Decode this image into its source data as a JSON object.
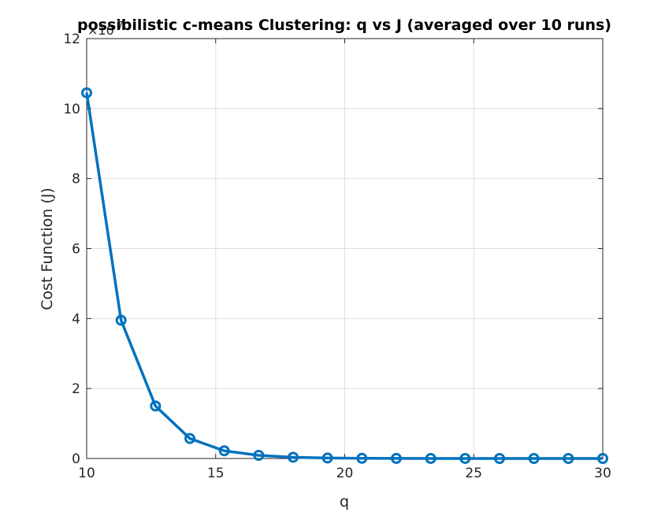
{
  "chart_data": {
    "type": "line",
    "title": "possibilistic c-means Clustering: q vs J (averaged over 10 runs)",
    "xlabel": "q",
    "ylabel": "Cost Function (J)",
    "y_exponent_label": "×10",
    "y_exponent_power": "7",
    "xlim": [
      10,
      30
    ],
    "ylim": [
      0,
      12
    ],
    "y_scale_factor": 10000000,
    "xticks": [
      10,
      15,
      20,
      25,
      30
    ],
    "yticks": [
      0,
      2,
      4,
      6,
      8,
      10,
      12
    ],
    "grid": true,
    "color": "#0072BD",
    "series": [
      {
        "x": [
          10,
          11.333,
          12.667,
          14,
          15.333,
          16.667,
          18,
          19.333,
          20.667,
          22,
          23.333,
          24.667,
          26,
          27.333,
          28.667,
          30
        ],
        "y": [
          10.45,
          3.95,
          1.5,
          0.57,
          0.22,
          0.09,
          0.035,
          0.013,
          0.005,
          0.002,
          0.001,
          0.0005,
          0.0002,
          0.0001,
          5e-05,
          2e-05
        ]
      }
    ]
  }
}
